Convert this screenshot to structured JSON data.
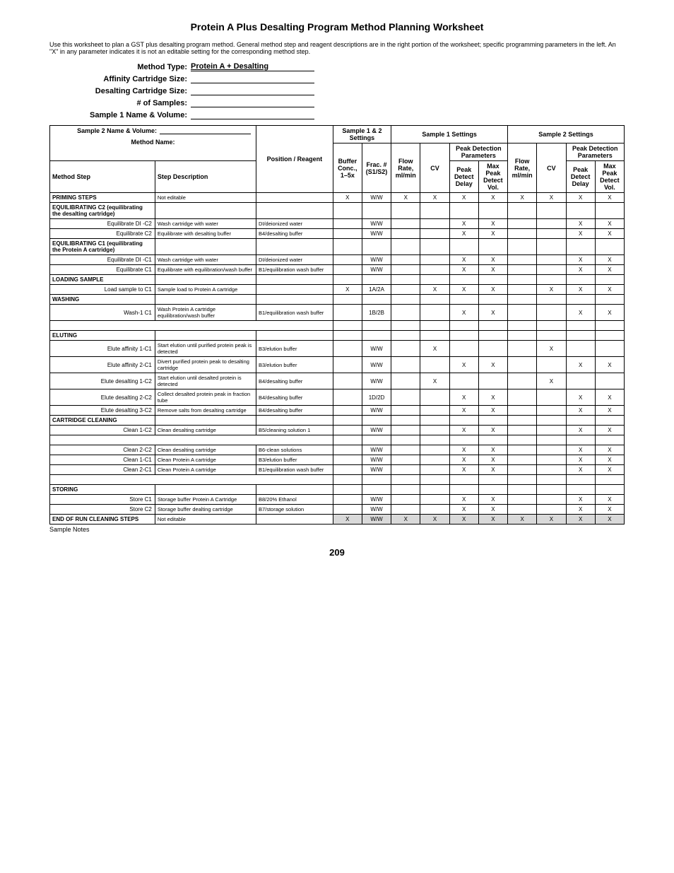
{
  "title": "Protein A Plus Desalting Program Method Planning Worksheet",
  "intro": "Use this worksheet to plan a GST plus desalting program method. General method step and reagent descriptions are in the right portion of the worksheet; specific programming parameters in the left. An \"X\" in any parameter indicates it is not an editable setting for the corresponding method step.",
  "form": {
    "method_type_label": "Method Type:",
    "method_type_value": "Protein A + Desalting",
    "affinity_label": "Affinity Cartridge Size:",
    "desalting_label": "Desalting Cartridge Size:",
    "samples_label": "# of Samples:",
    "s1_label": "Sample 1 Name & Volume:",
    "s2_label": "Sample 2 Name & Volume:",
    "method_name_label": "Method Name:"
  },
  "headers": {
    "sample12": "Sample 1 & 2 Settings",
    "s1set": "Sample 1 Settings",
    "s2set": "Sample 2 Settings",
    "pdparams": "Peak Detection Parameters",
    "method_step": "Method Step",
    "step_desc": "Step Description",
    "position": "Position / Reagent",
    "buffer": "Buffer Conc., 1–5x",
    "frac": "Frac. # (S1/S2)",
    "flow": "Flow Rate, ml/min",
    "cv": "CV",
    "pdd": "Peak Detect Delay",
    "maxpdv": "Max Peak Detect Vol."
  },
  "rows": [
    {
      "type": "section",
      "step": "PRIMING STEPS",
      "desc": "Not editable",
      "cells": [
        "X",
        "W/W",
        "X",
        "X",
        "X",
        "X",
        "X",
        "X",
        "X",
        "X"
      ]
    },
    {
      "type": "section",
      "step": "EQUILIBRATING C2 (equilibrating the desalting cartridge)",
      "desc": "",
      "cells": [
        "",
        "",
        "",
        "",
        "",
        "",
        "",
        "",
        "",
        ""
      ]
    },
    {
      "type": "step",
      "step": "Equilibrate DI -C2",
      "desc": "Wash cartridge with water",
      "reagent": "DI/deionized water",
      "cells": [
        "",
        "W/W",
        "",
        "",
        "X",
        "X",
        "",
        "",
        "X",
        "X"
      ]
    },
    {
      "type": "step",
      "step": "Equilibrate C2",
      "desc": "Equilibrate with desalting buffer",
      "reagent": "B4/desalting buffer",
      "cells": [
        "",
        "W/W",
        "",
        "",
        "X",
        "X",
        "",
        "",
        "X",
        "X"
      ]
    },
    {
      "type": "section",
      "step": "EQUILIBRATING C1 (equilibrating the Protein A cartridge)",
      "desc": "",
      "cells": [
        "",
        "",
        "",
        "",
        "",
        "",
        "",
        "",
        "",
        ""
      ]
    },
    {
      "type": "step",
      "step": "Equilibrate DI -C1",
      "desc": "Wash cartridge with water",
      "reagent": "DI/deionized water",
      "cells": [
        "",
        "W/W",
        "",
        "",
        "X",
        "X",
        "",
        "",
        "X",
        "X"
      ]
    },
    {
      "type": "step",
      "step": "Equilibrate C1",
      "desc": "Equilibrate with equilibration/wash buffer",
      "reagent": "B1/equilibration wash buffer",
      "cells": [
        "",
        "W/W",
        "",
        "",
        "X",
        "X",
        "",
        "",
        "X",
        "X"
      ]
    },
    {
      "type": "section",
      "step": "LOADING SAMPLE",
      "desc": "",
      "cells": [
        "",
        "",
        "",
        "",
        "",
        "",
        "",
        "",
        "",
        ""
      ]
    },
    {
      "type": "step",
      "step": "Load sample to C1",
      "desc": "Sample load to Protein A cartridge",
      "reagent": "",
      "cells": [
        "X",
        "1A/2A",
        "",
        "X",
        "X",
        "X",
        "",
        "X",
        "X",
        "X"
      ]
    },
    {
      "type": "section",
      "step": "WASHING",
      "desc": "",
      "cells": [
        "",
        "",
        "",
        "",
        "",
        "",
        "",
        "",
        "",
        ""
      ]
    },
    {
      "type": "step",
      "step": "Wash-1 C1",
      "desc": "Wash Protein A cartridge equilibration/wash buffer",
      "reagent": "B1/equilibration wash buffer",
      "cells": [
        "",
        "1B/2B",
        "",
        "",
        "X",
        "X",
        "",
        "",
        "X",
        "X"
      ]
    },
    {
      "type": "blank",
      "cells": [
        "",
        "",
        "",
        "",
        "",
        "",
        "",
        "",
        "",
        ""
      ]
    },
    {
      "type": "section",
      "step": "ELUTING",
      "desc": "",
      "cells": [
        "",
        "",
        "",
        "",
        "",
        "",
        "",
        "",
        "",
        ""
      ]
    },
    {
      "type": "step",
      "step": "Elute affinity 1-C1",
      "desc": "Start elution until purified protein peak is detected",
      "reagent": "B3/elution buffer",
      "cells": [
        "",
        "W/W",
        "",
        "X",
        "",
        "",
        "",
        "X",
        "",
        ""
      ]
    },
    {
      "type": "step",
      "step": "Elute affinity 2-C1",
      "desc": "Divert purified protein peak to desalting cartridge",
      "reagent": "B3/elution buffer",
      "cells": [
        "",
        "W/W",
        "",
        "",
        "X",
        "X",
        "",
        "",
        "X",
        "X"
      ]
    },
    {
      "type": "step",
      "step": "Elute desalting 1-C2",
      "desc": "Start elution until desalted protein is detected",
      "reagent": "B4/desalting buffer",
      "cells": [
        "",
        "W/W",
        "",
        "X",
        "",
        "",
        "",
        "X",
        "",
        ""
      ]
    },
    {
      "type": "step",
      "step": "Elute desalting 2-C2",
      "desc": "Collect desalted protein peak in fraction tube",
      "reagent": "B4/desalting buffer",
      "cells": [
        "",
        "1D/2D",
        "",
        "",
        "X",
        "X",
        "",
        "",
        "X",
        "X"
      ]
    },
    {
      "type": "step",
      "step": "Elute desalting 3-C2",
      "desc": "Remove salts from desalting cartridge",
      "reagent": "B4/desalting buffer",
      "cells": [
        "",
        "W/W",
        "",
        "",
        "X",
        "X",
        "",
        "",
        "X",
        "X"
      ]
    },
    {
      "type": "section",
      "step": "CARTRIDGE CLEANING",
      "desc": "",
      "cells": [
        "",
        "",
        "",
        "",
        "",
        "",
        "",
        "",
        "",
        ""
      ]
    },
    {
      "type": "step",
      "step": "Clean 1-C2",
      "desc": "Clean desalting cartridge",
      "reagent": "B5/cleaning solution 1",
      "cells": [
        "",
        "W/W",
        "",
        "",
        "X",
        "X",
        "",
        "",
        "X",
        "X"
      ]
    },
    {
      "type": "blank",
      "cells": [
        "",
        "",
        "",
        "",
        "",
        "",
        "",
        "",
        "",
        ""
      ]
    },
    {
      "type": "step",
      "step": "Clean 2-C2",
      "desc": "Clean desalting cartridge",
      "reagent": "B6-clean solutions",
      "cells": [
        "",
        "W/W",
        "",
        "",
        "X",
        "X",
        "",
        "",
        "X",
        "X"
      ]
    },
    {
      "type": "step",
      "step": "Clean 1-C1",
      "desc": "Clean Protein A cartridge",
      "reagent": "B3/elution buffer",
      "cells": [
        "",
        "W/W",
        "",
        "",
        "X",
        "X",
        "",
        "",
        "X",
        "X"
      ]
    },
    {
      "type": "step",
      "step": "Clean 2-C1",
      "desc": "Clean Protein A cartridge",
      "reagent": "B1/equilibration wash buffer",
      "cells": [
        "",
        "W/W",
        "",
        "",
        "X",
        "X",
        "",
        "",
        "X",
        "X"
      ]
    },
    {
      "type": "blank",
      "cells": [
        "",
        "",
        "",
        "",
        "",
        "",
        "",
        "",
        "",
        ""
      ]
    },
    {
      "type": "section",
      "step": "STORING",
      "desc": "",
      "cells": [
        "",
        "",
        "",
        "",
        "",
        "",
        "",
        "",
        "",
        ""
      ]
    },
    {
      "type": "step",
      "step": "Store C1",
      "desc": "Storage buffer Protein A Cartridge",
      "reagent": "B8/20% Ethanol",
      "cells": [
        "",
        "W/W",
        "",
        "",
        "X",
        "X",
        "",
        "",
        "X",
        "X"
      ]
    },
    {
      "type": "step",
      "step": "Store C2",
      "desc": "Storage buffer dealting cartridge",
      "reagent": "B7/storage solution",
      "cells": [
        "",
        "W/W",
        "",
        "",
        "X",
        "X",
        "",
        "",
        "X",
        "X"
      ]
    },
    {
      "type": "section",
      "step": "END OF RUN CLEANING STEPS",
      "desc": "Not editable",
      "cells": [
        "X",
        "W/W",
        "X",
        "X",
        "X",
        "X",
        "X",
        "X",
        "X",
        "X"
      ],
      "shaded": true
    }
  ],
  "notes": "Sample Notes",
  "page": "209"
}
